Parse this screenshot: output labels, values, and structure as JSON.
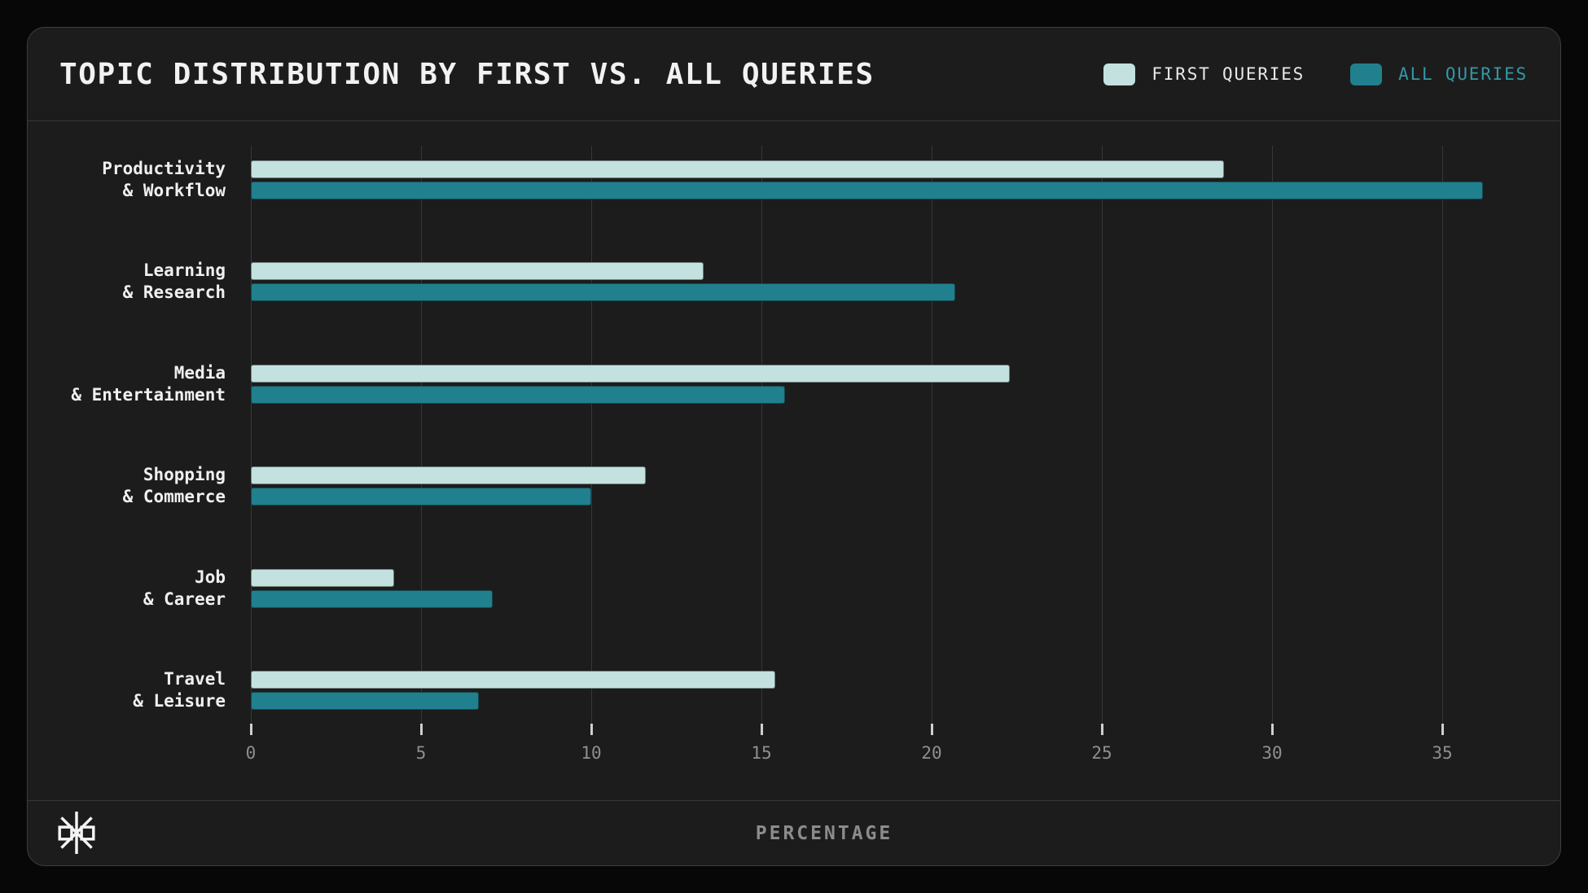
{
  "header": {
    "title": "TOPIC DISTRIBUTION BY FIRST VS. ALL QUERIES"
  },
  "legend": {
    "items": [
      {
        "label": "FIRST QUERIES",
        "swatch_color": "#c3e1df",
        "label_color": "#e8e8e8"
      },
      {
        "label": "ALL QUERIES",
        "swatch_color": "#20808e",
        "label_color": "#3398a6"
      }
    ]
  },
  "footer": {
    "xlabel": "PERCENTAGE",
    "logo": "asterisk-logo"
  },
  "colors": {
    "background": "#070707",
    "card": "#1c1c1c",
    "gridline": "#373737",
    "title": "#f2f2f2",
    "tick_label": "#8f8f8f",
    "category_label": "#f0f0f0",
    "first_queries": "#c3e1df",
    "all_queries": "#20808e"
  },
  "chart_data": {
    "type": "bar",
    "orientation": "horizontal",
    "title": "TOPIC DISTRIBUTION BY FIRST VS. ALL QUERIES",
    "xlabel": "PERCENTAGE",
    "ylabel": "",
    "xlim": [
      0,
      37.5
    ],
    "xticks": [
      0,
      5,
      10,
      15,
      20,
      25,
      30,
      35
    ],
    "grid": true,
    "legend_position": "top-right",
    "categories": [
      [
        "Productivity",
        "& Workflow"
      ],
      [
        "Learning",
        "& Research"
      ],
      [
        "Media",
        "& Entertainment"
      ],
      [
        "Shopping",
        "& Commerce"
      ],
      [
        "Job",
        "& Career"
      ],
      [
        "Travel",
        "& Leisure"
      ]
    ],
    "series": [
      {
        "name": "FIRST QUERIES",
        "color": "#c3e1df",
        "values": [
          28.6,
          13.3,
          22.3,
          11.6,
          4.2,
          15.4
        ]
      },
      {
        "name": "ALL QUERIES",
        "color": "#20808e",
        "values": [
          36.2,
          20.7,
          15.7,
          10.0,
          7.1,
          6.7
        ]
      }
    ]
  }
}
